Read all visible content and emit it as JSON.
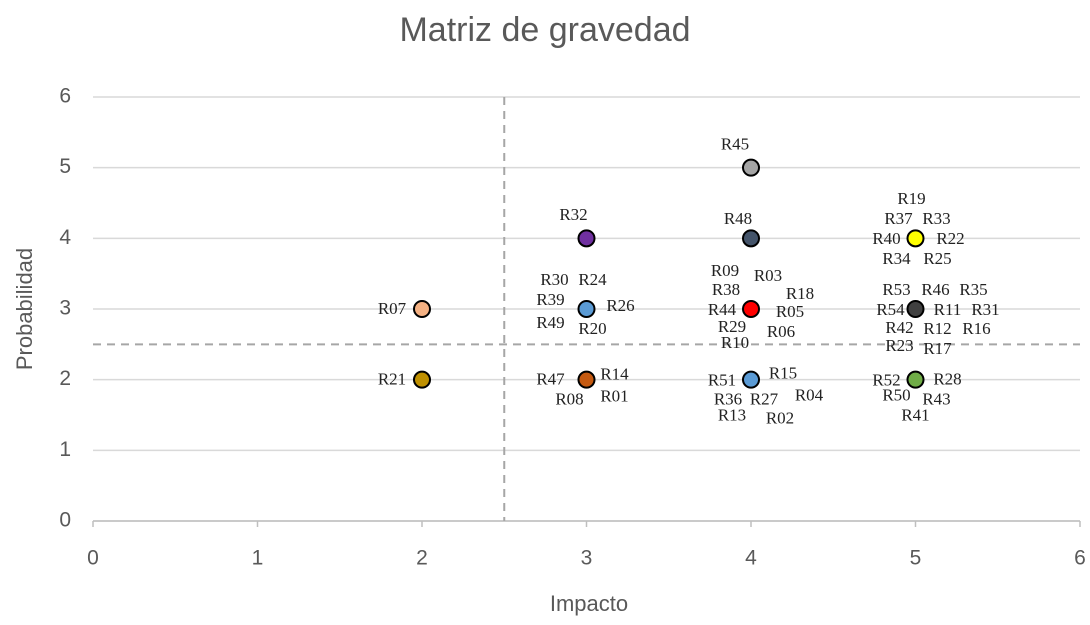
{
  "chart_data": {
    "type": "scatter",
    "title": "Matriz de gravedad",
    "x_label": "Impacto",
    "y_label": "Probabilidad",
    "xlim": [
      0,
      6
    ],
    "ylim": [
      0,
      6
    ],
    "xticks": [
      0,
      1,
      2,
      3,
      4,
      5,
      6
    ],
    "yticks": [
      0,
      1,
      2,
      3,
      4,
      5,
      6
    ],
    "grid": true,
    "reference_lines": {
      "x": 2.5,
      "y": 2.5
    },
    "points": [
      {
        "x": 2,
        "y": 3,
        "color": "#f4b183",
        "labels": [
          "R07"
        ]
      },
      {
        "x": 2,
        "y": 2,
        "color": "#bf9000",
        "labels": [
          "R21"
        ]
      },
      {
        "x": 3,
        "y": 4,
        "color": "#7030a0",
        "labels": [
          "R32"
        ]
      },
      {
        "x": 3,
        "y": 3,
        "color": "#5b9bd5",
        "labels": [
          "R30",
          "R24",
          "R39",
          "R26",
          "R49",
          "R20"
        ]
      },
      {
        "x": 3,
        "y": 2,
        "color": "#c55a11",
        "labels": [
          "R47",
          "R14",
          "R08",
          "R01"
        ]
      },
      {
        "x": 4,
        "y": 5,
        "color": "#a5a5a5",
        "labels": [
          "R45"
        ]
      },
      {
        "x": 4,
        "y": 4,
        "color": "#44546a",
        "labels": [
          "R48"
        ]
      },
      {
        "x": 4,
        "y": 3,
        "color": "#ff0000",
        "labels": [
          "R09",
          "R03",
          "R38",
          "R18",
          "R44",
          "R05",
          "R29",
          "R06",
          "R10"
        ]
      },
      {
        "x": 4,
        "y": 2,
        "color": "#5b9bd5",
        "labels": [
          "R51",
          "R15",
          "R36",
          "R27",
          "R04",
          "R13",
          "R02"
        ]
      },
      {
        "x": 5,
        "y": 4,
        "color": "#ffff00",
        "labels": [
          "R19",
          "R37",
          "R33",
          "R40",
          "R22",
          "R34",
          "R25"
        ]
      },
      {
        "x": 5,
        "y": 3,
        "color": "#404040",
        "labels": [
          "R53",
          "R46",
          "R35",
          "R54",
          "R11",
          "R31",
          "R42",
          "R12",
          "R16",
          "R23",
          "R17"
        ]
      },
      {
        "x": 5,
        "y": 2,
        "color": "#70ad47",
        "labels": [
          "R52",
          "R28",
          "R50",
          "R43",
          "R41"
        ]
      }
    ]
  }
}
